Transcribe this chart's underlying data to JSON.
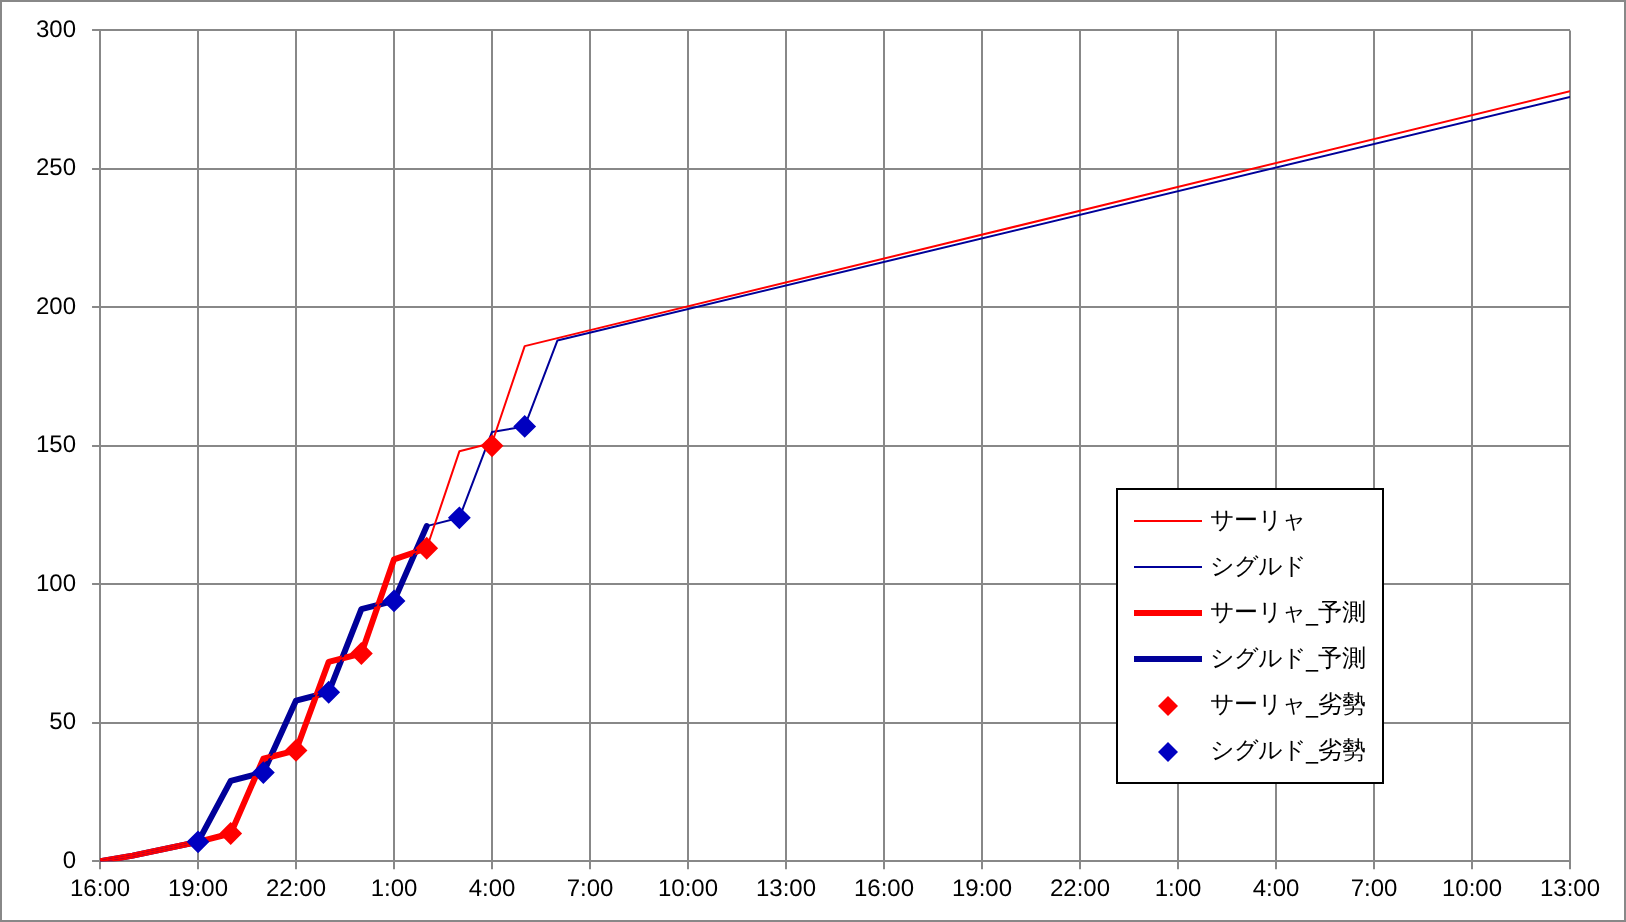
{
  "chart_data": {
    "type": "line",
    "xlim": [
      "2000-01-01T16:00",
      "2000-01-03T13:00"
    ],
    "ylim": [
      0,
      300
    ],
    "xticks": [
      {
        "value": "2000-01-01T16:00",
        "label": "16:00"
      },
      {
        "value": "2000-01-01T19:00",
        "label": "19:00"
      },
      {
        "value": "2000-01-01T22:00",
        "label": "22:00"
      },
      {
        "value": "2000-01-02T01:00",
        "label": "1:00"
      },
      {
        "value": "2000-01-02T04:00",
        "label": "4:00"
      },
      {
        "value": "2000-01-02T07:00",
        "label": "7:00"
      },
      {
        "value": "2000-01-02T10:00",
        "label": "10:00"
      },
      {
        "value": "2000-01-02T13:00",
        "label": "13:00"
      },
      {
        "value": "2000-01-02T16:00",
        "label": "16:00"
      },
      {
        "value": "2000-01-02T19:00",
        "label": "19:00"
      },
      {
        "value": "2000-01-02T22:00",
        "label": "22:00"
      },
      {
        "value": "2000-01-03T01:00",
        "label": "1:00"
      },
      {
        "value": "2000-01-03T04:00",
        "label": "4:00"
      },
      {
        "value": "2000-01-03T07:00",
        "label": "7:00"
      },
      {
        "value": "2000-01-03T10:00",
        "label": "10:00"
      },
      {
        "value": "2000-01-03T13:00",
        "label": "13:00"
      }
    ],
    "yticks": [
      0,
      50,
      100,
      150,
      200,
      250,
      300
    ],
    "grid": true,
    "legend": "right",
    "series": [
      {
        "name": "サーリャ",
        "color": "#ff0000",
        "x": [
          "2000-01-01T16:00",
          "2000-01-01T17:00",
          "2000-01-01T19:00",
          "2000-01-01T20:00",
          "2000-01-01T21:00",
          "2000-01-01T22:00",
          "2000-01-01T23:00",
          "2000-01-02T00:00",
          "2000-01-02T01:00",
          "2000-01-02T02:00",
          "2000-01-02T03:00",
          "2000-01-02T04:00",
          "2000-01-02T05:00",
          "2000-01-03T13:00"
        ],
        "values": [
          0,
          2,
          7,
          10,
          37,
          40,
          72,
          75,
          109,
          113,
          148,
          151,
          186,
          278
        ]
      },
      {
        "name": "シグルド",
        "color": "#000099",
        "x": [
          "2000-01-01T16:00",
          "2000-01-01T17:00",
          "2000-01-01T19:00",
          "2000-01-01T20:00",
          "2000-01-01T21:00",
          "2000-01-01T22:00",
          "2000-01-01T23:00",
          "2000-01-02T00:00",
          "2000-01-02T01:00",
          "2000-01-02T02:00",
          "2000-01-02T03:00",
          "2000-01-02T04:00",
          "2000-01-02T05:00",
          "2000-01-02T06:00",
          "2000-01-03T13:00"
        ],
        "values": [
          0,
          2,
          7,
          29,
          32,
          58,
          61,
          91,
          94,
          121,
          124,
          155,
          157,
          188,
          276
        ]
      },
      {
        "name": "サーリャ_予測",
        "color": "#ff0000",
        "x": [
          "2000-01-01T16:00",
          "2000-01-01T17:00",
          "2000-01-01T19:00",
          "2000-01-01T20:00",
          "2000-01-01T21:00",
          "2000-01-01T22:00",
          "2000-01-01T23:00",
          "2000-01-02T00:00",
          "2000-01-02T01:00",
          "2000-01-02T02:00"
        ],
        "values": [
          0,
          2,
          7,
          10,
          37,
          40,
          72,
          75,
          109,
          113
        ]
      },
      {
        "name": "シグルド_予測",
        "color": "#000099",
        "x": [
          "2000-01-01T16:00",
          "2000-01-01T17:00",
          "2000-01-01T19:00",
          "2000-01-01T20:00",
          "2000-01-01T21:00",
          "2000-01-01T22:00",
          "2000-01-01T23:00",
          "2000-01-02T00:00",
          "2000-01-02T01:00",
          "2000-01-02T02:00"
        ],
        "values": [
          0,
          2,
          7,
          29,
          32,
          58,
          61,
          91,
          94,
          121
        ]
      },
      {
        "name": "サーリャ_劣勢",
        "type": "scatter",
        "marker": "diamond",
        "color": "#ff0000",
        "x": [
          "2000-01-01T20:00",
          "2000-01-01T22:00",
          "2000-01-02T00:00",
          "2000-01-02T02:00",
          "2000-01-02T04:00"
        ],
        "values": [
          10,
          40,
          75,
          113,
          150
        ]
      },
      {
        "name": "シグルド_劣勢",
        "type": "scatter",
        "marker": "diamond",
        "color": "#0000c0",
        "x": [
          "2000-01-01T19:00",
          "2000-01-01T21:00",
          "2000-01-01T23:00",
          "2000-01-02T01:00",
          "2000-01-02T03:00",
          "2000-01-02T05:00"
        ],
        "values": [
          7,
          32,
          61,
          94,
          124,
          157
        ]
      }
    ]
  }
}
